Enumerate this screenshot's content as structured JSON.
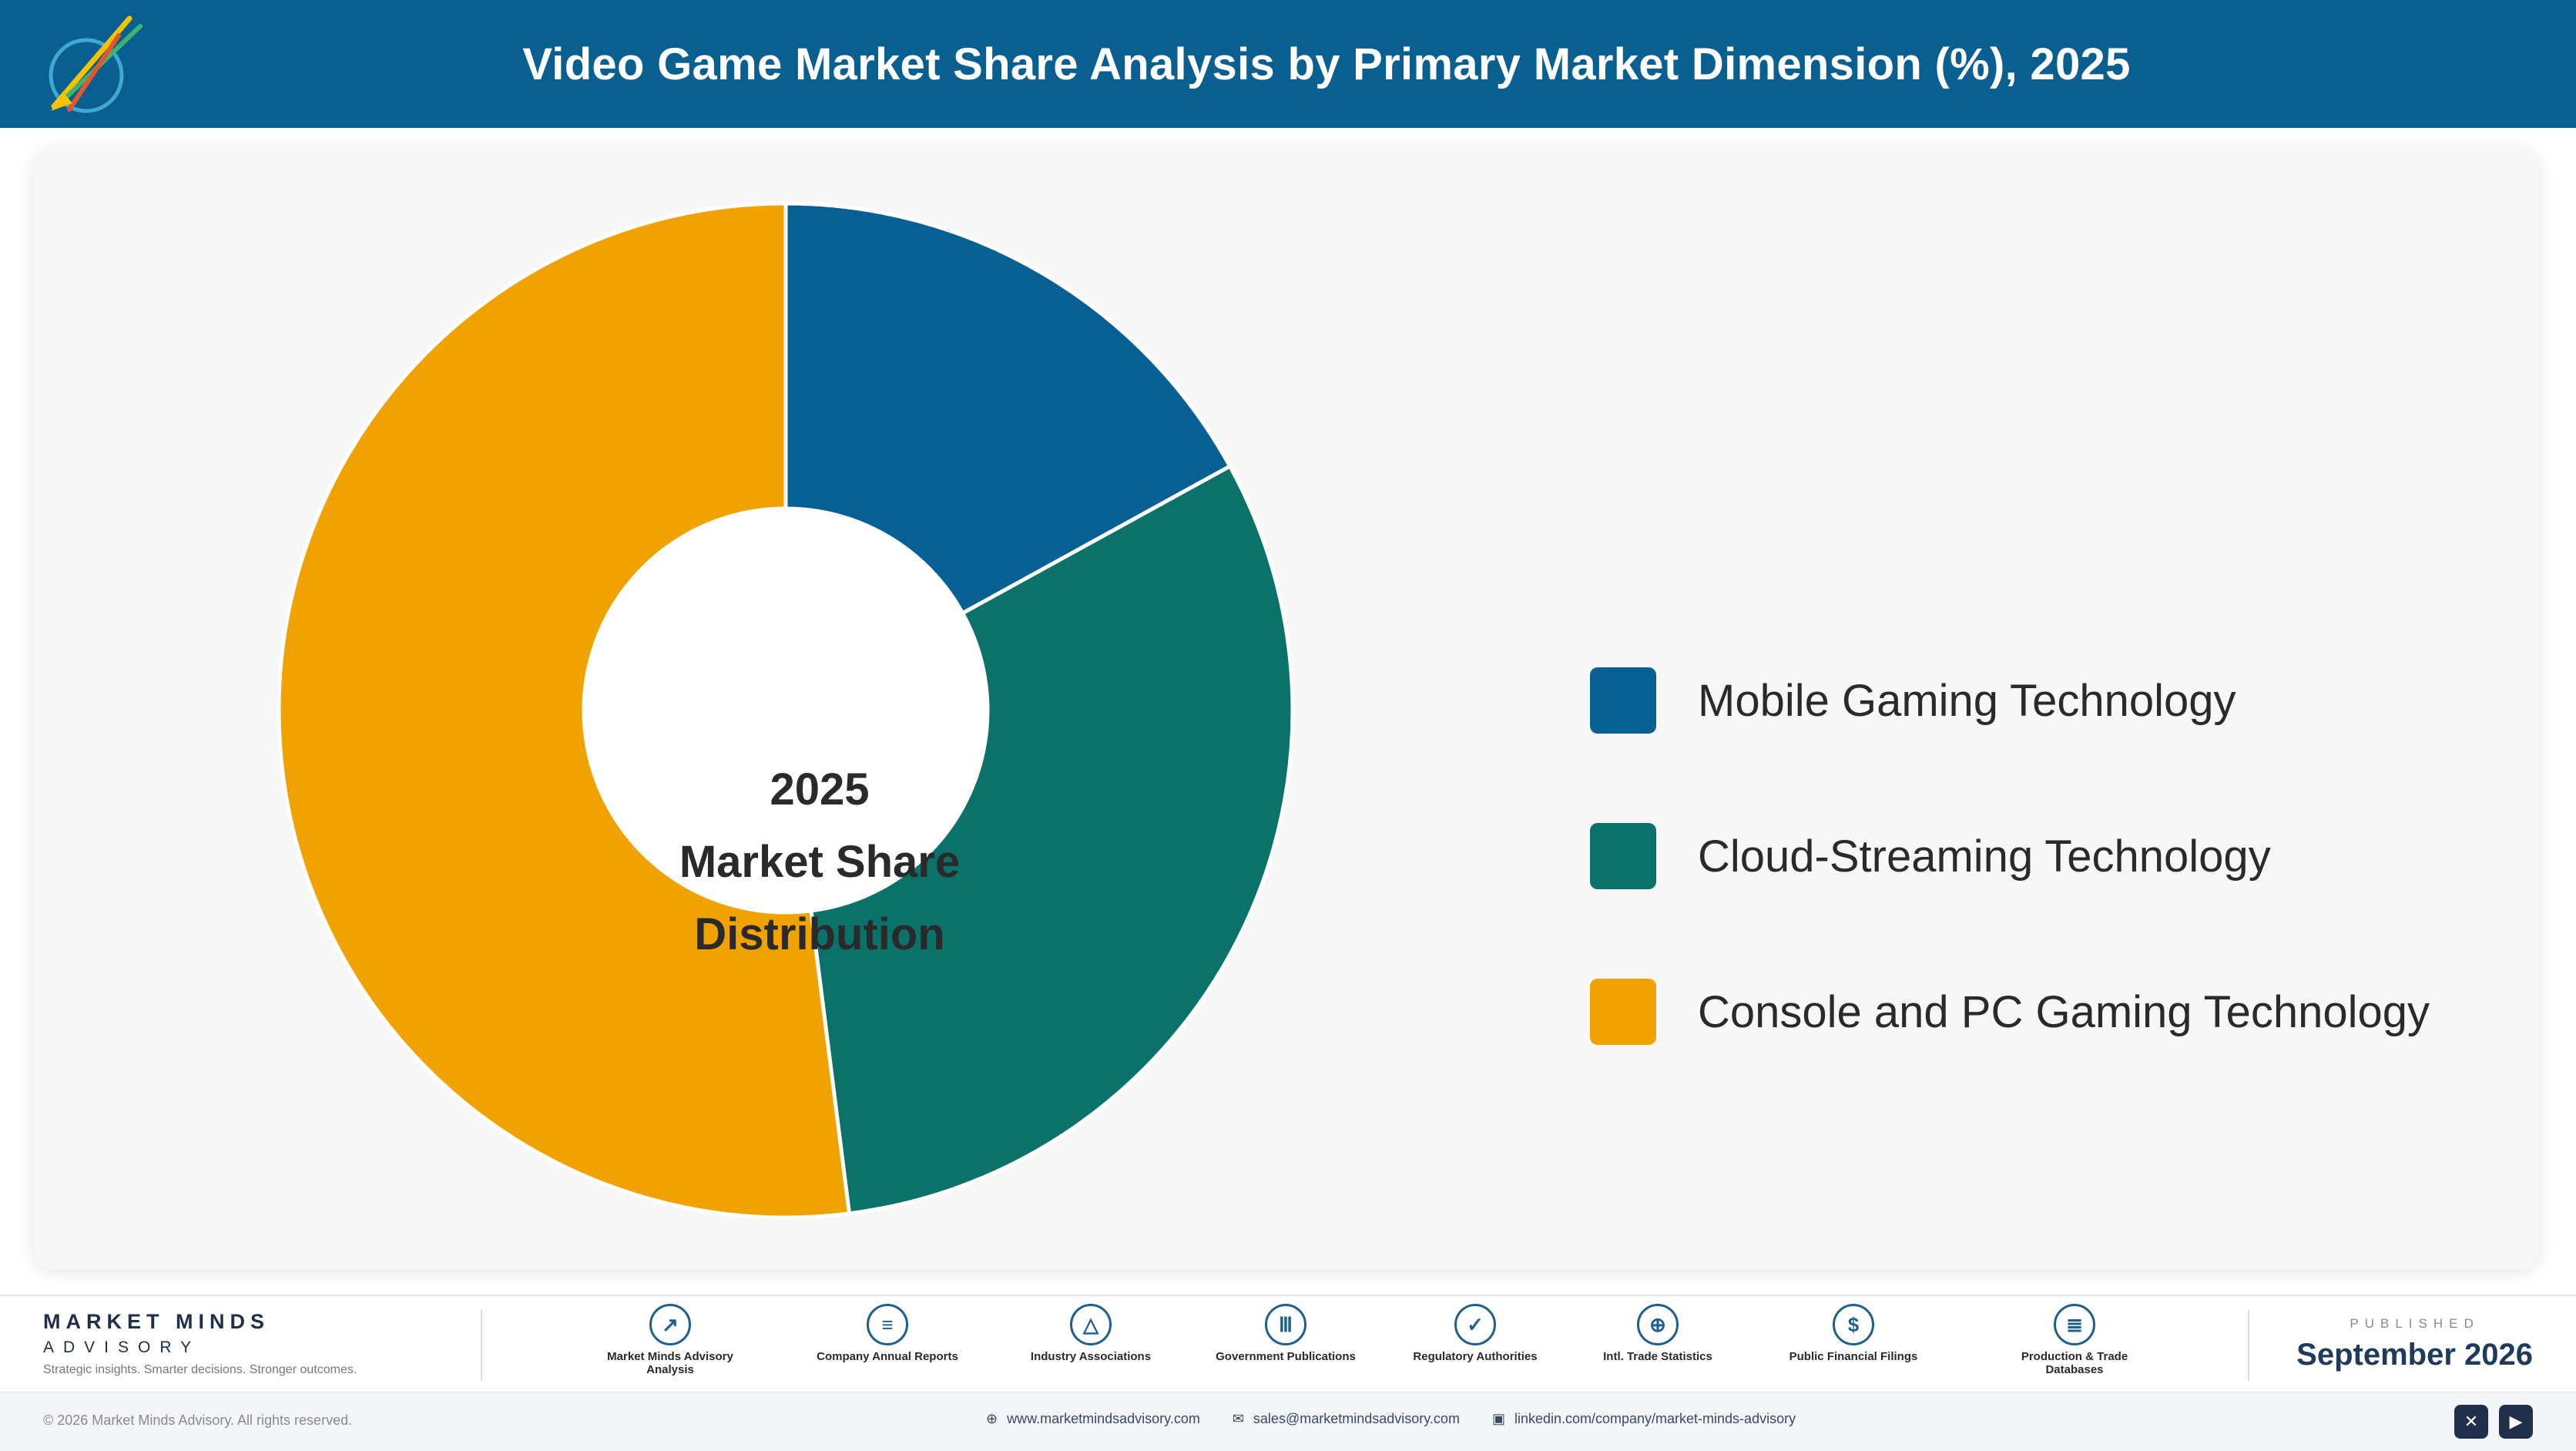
{
  "header": {
    "title": "Video Game Market Share Analysis by Primary Market Dimension (%), 2025",
    "logo_icon": "rocket-logo-icon"
  },
  "chart_data": {
    "type": "pie",
    "variant": "donut",
    "title": "Video Game Market Share Analysis by Primary Market Dimension (%), 2025",
    "center_label": [
      "2025",
      "Market Share",
      "Distribution"
    ],
    "categories": [
      "Mobile Gaming Technology",
      "Cloud-Streaming Technology",
      "Console and PC Gaming Technology"
    ],
    "values": [
      17,
      31,
      52
    ],
    "colors": [
      "#075f93",
      "#0b7269",
      "#f0a300"
    ],
    "legend_position": "right",
    "start_angle": "top",
    "direction": "clockwise"
  },
  "footer": {
    "brand": {
      "name": "MARKET MINDS",
      "sub": "ADVISORY",
      "tagline": "Strategic insights. Smarter decisions. Stronger outcomes."
    },
    "sources": [
      {
        "label": "Market Minds Advisory Analysis",
        "icon": "trend-chart-icon",
        "glyph": "↗"
      },
      {
        "label": "Company Annual Reports",
        "icon": "document-icon",
        "glyph": "≡"
      },
      {
        "label": "Industry Associations",
        "icon": "network-icon",
        "glyph": "△"
      },
      {
        "label": "Government Publications",
        "icon": "government-building-icon",
        "glyph": "Ⅲ"
      },
      {
        "label": "Regulatory Authorities",
        "icon": "shield-icon",
        "glyph": "✓"
      },
      {
        "label": "Intl. Trade Statistics",
        "icon": "globe-icon",
        "glyph": "⊕"
      },
      {
        "label": "Public Financial Filings",
        "icon": "dollar-coin-icon",
        "glyph": "$"
      },
      {
        "label": "Production & Trade Databases",
        "icon": "database-icon",
        "glyph": "≣"
      }
    ],
    "published_label": "PUBLISHED",
    "published_date": "September 2026"
  },
  "bottombar": {
    "copyright": "© 2026 Market Minds Advisory. All rights reserved.",
    "website": "www.marketmindsadvisory.com",
    "email": "sales@marketmindsadvisory.com",
    "linkedin": "linkedin.com/company/market-minds-advisory",
    "social": [
      "x-icon",
      "youtube-icon"
    ]
  }
}
